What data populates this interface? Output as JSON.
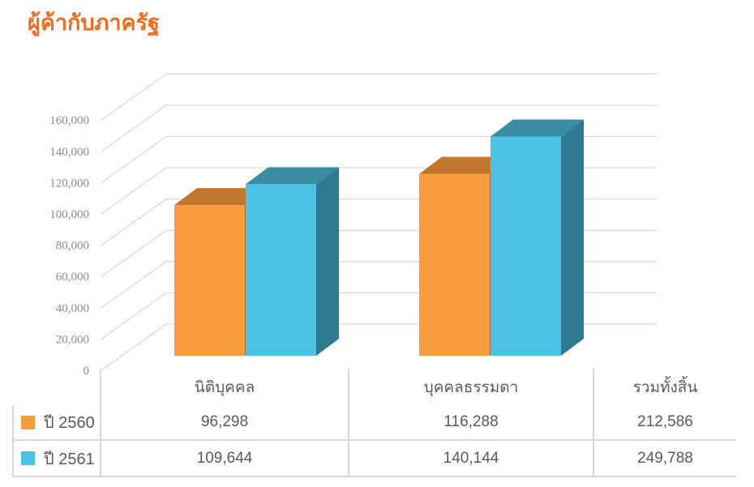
{
  "title": "ผู้ค้ากับภาครัฐ",
  "colors": {
    "title": "#F26A1E",
    "gridline": "#D9D9D9",
    "axis_label": "#8C8C8C",
    "table_text": "#595959",
    "table_line": "#D9D9D9"
  },
  "chart_data": {
    "type": "bar",
    "projection": "3d",
    "categories": [
      "นิติบุคคล",
      "บุคคลธรรมดา"
    ],
    "series": [
      {
        "name": "ปี 2560",
        "values": [
          96298,
          116288
        ],
        "color": "#F89C3D",
        "top_color": "#C1782D",
        "side_color": "#AD6A25"
      },
      {
        "name": "ปี 2561",
        "values": [
          109644,
          140144
        ],
        "color": "#4CC2E6",
        "top_color": "#3A8CA3",
        "side_color": "#2E7A91"
      }
    ],
    "ylim": [
      0,
      160000
    ],
    "ytick_step": 20000,
    "ytick_labels": [
      "0",
      "20,000",
      "40,000",
      "60,000",
      "80,000",
      "100,000",
      "120,000",
      "140,000",
      "160,000"
    ],
    "grid": true,
    "legend_position": "data-table-left"
  },
  "table": {
    "headers": [
      "",
      "นิติบุคคล",
      "บุคคลธรรมดา",
      "รวมทั้งสิ้น"
    ],
    "rows": [
      {
        "label": "ปี 2560",
        "swatch_color": "#F89C3D",
        "values": [
          "96,298",
          "116,288",
          "212,586"
        ]
      },
      {
        "label": "ปี 2561",
        "swatch_color": "#4CC2E6",
        "values": [
          "109,644",
          "140,144",
          "249,788"
        ]
      }
    ]
  }
}
